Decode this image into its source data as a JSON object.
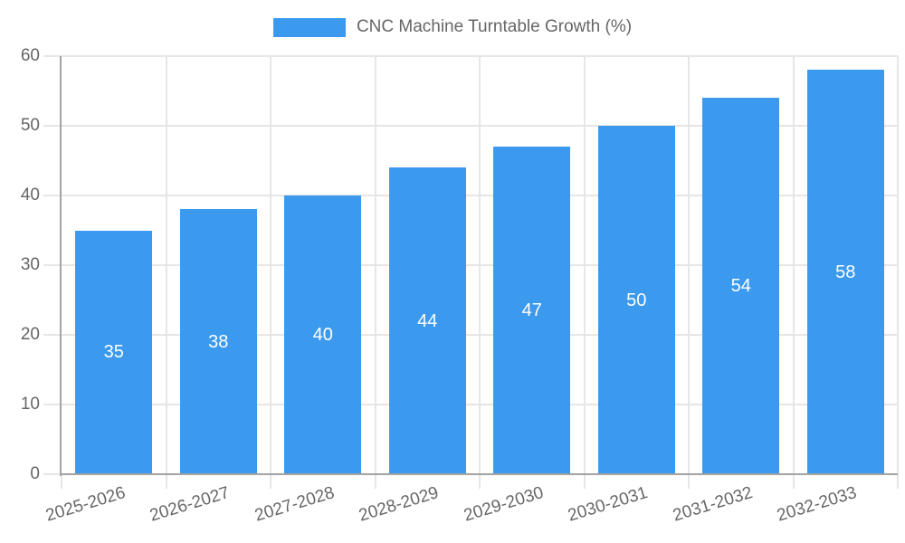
{
  "legend": {
    "label": "CNC Machine Turntable Growth (%)"
  },
  "colors": {
    "bar": "#3B99EE",
    "bar_label": "#ffffff",
    "axis_text": "#666666",
    "grid": "#e6e6e6",
    "axis_line": "#a3a3a3",
    "background": "#ffffff"
  },
  "chart_data": {
    "type": "bar",
    "title": "CNC Machine Turntable Growth (%)",
    "categories": [
      "2025-2026",
      "2026-2027",
      "2027-2028",
      "2028-2029",
      "2029-2030",
      "2030-2031",
      "2031-2032",
      "2032-2033"
    ],
    "values": [
      35,
      38,
      40,
      44,
      47,
      50,
      54,
      58
    ],
    "xlabel": "",
    "ylabel": "",
    "ylim": [
      0,
      60
    ],
    "yticks": [
      0,
      10,
      20,
      30,
      40,
      50,
      60
    ],
    "grid": true,
    "legend_position": "top",
    "value_labels": "inside-center",
    "x_tick_rotation_deg": -17
  }
}
